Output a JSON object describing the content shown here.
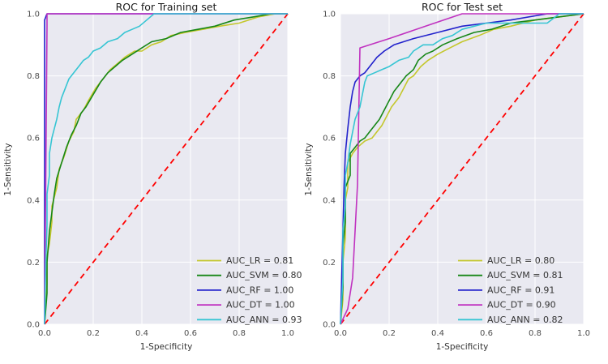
{
  "figure": {
    "background": "#ffffff"
  },
  "colors": {
    "plot_bg": "#e9e9f1",
    "grid": "#ffffff",
    "tick_label": "#4d4d4d",
    "title": "#1a1a1a",
    "legend_text": "#333333",
    "diagonal": "#ff0000",
    "lr": "#c4c72c",
    "svm": "#178717",
    "rf": "#2222cc",
    "dt": "#c032c0",
    "ann": "#36c5d3"
  },
  "chart_data": [
    {
      "type": "line",
      "title": "ROC for Training set",
      "xlabel": "1-Specificity",
      "ylabel": "1-Sensitivity",
      "xlim": [
        0.0,
        1.0
      ],
      "ylim": [
        0.0,
        1.0
      ],
      "xticks": [
        "0.0",
        "0.2",
        "0.4",
        "0.6",
        "0.8",
        "1.0"
      ],
      "yticks": [
        "0.0",
        "0.2",
        "0.4",
        "0.6",
        "0.8",
        "1.0"
      ],
      "grid": true,
      "legend_position": "lower right",
      "diagonal": {
        "style": "dashed",
        "color": "#ff0000",
        "points": [
          [
            0,
            0
          ],
          [
            1,
            1
          ]
        ]
      },
      "series": [
        {
          "name": "AUC_LR = 0.81",
          "model": "LR",
          "auc": 0.81,
          "color_key": "lr",
          "points": [
            [
              0,
              0
            ],
            [
              0.01,
              0.13
            ],
            [
              0.01,
              0.22
            ],
            [
              0.02,
              0.26
            ],
            [
              0.03,
              0.33
            ],
            [
              0.03,
              0.38
            ],
            [
              0.05,
              0.44
            ],
            [
              0.06,
              0.5
            ],
            [
              0.08,
              0.54
            ],
            [
              0.1,
              0.59
            ],
            [
              0.12,
              0.62
            ],
            [
              0.13,
              0.66
            ],
            [
              0.16,
              0.69
            ],
            [
              0.18,
              0.72
            ],
            [
              0.21,
              0.76
            ],
            [
              0.24,
              0.79
            ],
            [
              0.27,
              0.82
            ],
            [
              0.3,
              0.84
            ],
            [
              0.33,
              0.86
            ],
            [
              0.37,
              0.88
            ],
            [
              0.4,
              0.88
            ],
            [
              0.44,
              0.9
            ],
            [
              0.48,
              0.91
            ],
            [
              0.52,
              0.93
            ],
            [
              0.58,
              0.94
            ],
            [
              0.65,
              0.95
            ],
            [
              0.72,
              0.96
            ],
            [
              0.8,
              0.97
            ],
            [
              0.88,
              0.99
            ],
            [
              0.95,
              1
            ],
            [
              1,
              1
            ]
          ]
        },
        {
          "name": "AUC_SVM = 0.80",
          "model": "SVM",
          "auc": 0.8,
          "color_key": "svm",
          "points": [
            [
              0,
              0
            ],
            [
              0.01,
              0.1
            ],
            [
              0.01,
              0.2
            ],
            [
              0.02,
              0.3
            ],
            [
              0.03,
              0.36
            ],
            [
              0.04,
              0.42
            ],
            [
              0.05,
              0.47
            ],
            [
              0.07,
              0.52
            ],
            [
              0.09,
              0.57
            ],
            [
              0.11,
              0.61
            ],
            [
              0.13,
              0.64
            ],
            [
              0.15,
              0.68
            ],
            [
              0.17,
              0.7
            ],
            [
              0.2,
              0.74
            ],
            [
              0.23,
              0.78
            ],
            [
              0.26,
              0.81
            ],
            [
              0.29,
              0.83
            ],
            [
              0.32,
              0.85
            ],
            [
              0.36,
              0.87
            ],
            [
              0.4,
              0.89
            ],
            [
              0.44,
              0.91
            ],
            [
              0.5,
              0.92
            ],
            [
              0.56,
              0.94
            ],
            [
              0.63,
              0.95
            ],
            [
              0.7,
              0.96
            ],
            [
              0.78,
              0.98
            ],
            [
              0.86,
              0.99
            ],
            [
              0.93,
              1
            ],
            [
              1,
              1
            ]
          ]
        },
        {
          "name": "AUC_RF = 1.00",
          "model": "RF",
          "auc": 1.0,
          "color_key": "rf",
          "points": [
            [
              0,
              0
            ],
            [
              0,
              0.98
            ],
            [
              0.01,
              1
            ],
            [
              1,
              1
            ]
          ]
        },
        {
          "name": "AUC_DT = 1.00",
          "model": "DT",
          "auc": 1.0,
          "color_key": "dt",
          "points": [
            [
              0,
              0
            ],
            [
              0.01,
              0.96
            ],
            [
              0.01,
              1
            ],
            [
              1,
              1
            ]
          ]
        },
        {
          "name": "AUC_ANN = 0.93",
          "model": "ANN",
          "auc": 0.93,
          "color_key": "ann",
          "points": [
            [
              0,
              0
            ],
            [
              0.005,
              0.2
            ],
            [
              0.01,
              0.32
            ],
            [
              0.01,
              0.42
            ],
            [
              0.02,
              0.48
            ],
            [
              0.02,
              0.55
            ],
            [
              0.03,
              0.6
            ],
            [
              0.04,
              0.63
            ],
            [
              0.05,
              0.66
            ],
            [
              0.06,
              0.7
            ],
            [
              0.07,
              0.73
            ],
            [
              0.08,
              0.75
            ],
            [
              0.09,
              0.77
            ],
            [
              0.1,
              0.79
            ],
            [
              0.12,
              0.81
            ],
            [
              0.14,
              0.83
            ],
            [
              0.16,
              0.85
            ],
            [
              0.18,
              0.86
            ],
            [
              0.2,
              0.88
            ],
            [
              0.23,
              0.89
            ],
            [
              0.26,
              0.91
            ],
            [
              0.3,
              0.92
            ],
            [
              0.33,
              0.94
            ],
            [
              0.36,
              0.95
            ],
            [
              0.39,
              0.96
            ],
            [
              0.42,
              0.98
            ],
            [
              0.45,
              1
            ],
            [
              1,
              1
            ]
          ]
        }
      ]
    },
    {
      "type": "line",
      "title": "ROC for Test set",
      "xlabel": "1-Specificity",
      "ylabel": "1-Sensitivity",
      "xlim": [
        0.0,
        1.0
      ],
      "ylim": [
        0.0,
        1.0
      ],
      "xticks": [
        "0.0",
        "0.2",
        "0.4",
        "0.6",
        "0.8",
        "1.0"
      ],
      "yticks": [
        "0.0",
        "0.2",
        "0.4",
        "0.6",
        "0.8",
        "1.0"
      ],
      "grid": true,
      "legend_position": "lower right",
      "diagonal": {
        "style": "dashed",
        "color": "#ff0000",
        "points": [
          [
            0,
            0
          ],
          [
            1,
            1
          ]
        ]
      },
      "series": [
        {
          "name": "AUC_LR = 0.80",
          "model": "LR",
          "auc": 0.8,
          "color_key": "lr",
          "points": [
            [
              0,
              0
            ],
            [
              0.01,
              0.08
            ],
            [
              0.01,
              0.2
            ],
            [
              0.02,
              0.28
            ],
            [
              0.02,
              0.4
            ],
            [
              0.03,
              0.44
            ],
            [
              0.03,
              0.52
            ],
            [
              0.05,
              0.55
            ],
            [
              0.07,
              0.57
            ],
            [
              0.1,
              0.59
            ],
            [
              0.13,
              0.6
            ],
            [
              0.15,
              0.62
            ],
            [
              0.17,
              0.64
            ],
            [
              0.19,
              0.67
            ],
            [
              0.21,
              0.7
            ],
            [
              0.24,
              0.73
            ],
            [
              0.26,
              0.76
            ],
            [
              0.28,
              0.79
            ],
            [
              0.3,
              0.8
            ],
            [
              0.33,
              0.83
            ],
            [
              0.36,
              0.85
            ],
            [
              0.4,
              0.87
            ],
            [
              0.45,
              0.89
            ],
            [
              0.5,
              0.91
            ],
            [
              0.57,
              0.93
            ],
            [
              0.63,
              0.95
            ],
            [
              0.7,
              0.96
            ],
            [
              0.8,
              0.98
            ],
            [
              0.9,
              0.99
            ],
            [
              1,
              1
            ]
          ]
        },
        {
          "name": "AUC_SVM = 0.81",
          "model": "SVM",
          "auc": 0.81,
          "color_key": "svm",
          "points": [
            [
              0,
              0
            ],
            [
              0.01,
              0.12
            ],
            [
              0.01,
              0.25
            ],
            [
              0.02,
              0.33
            ],
            [
              0.02,
              0.44
            ],
            [
              0.04,
              0.48
            ],
            [
              0.04,
              0.55
            ],
            [
              0.06,
              0.57
            ],
            [
              0.08,
              0.59
            ],
            [
              0.1,
              0.6
            ],
            [
              0.12,
              0.62
            ],
            [
              0.14,
              0.64
            ],
            [
              0.16,
              0.66
            ],
            [
              0.18,
              0.69
            ],
            [
              0.2,
              0.72
            ],
            [
              0.22,
              0.75
            ],
            [
              0.25,
              0.78
            ],
            [
              0.27,
              0.8
            ],
            [
              0.3,
              0.82
            ],
            [
              0.32,
              0.85
            ],
            [
              0.35,
              0.87
            ],
            [
              0.38,
              0.88
            ],
            [
              0.42,
              0.9
            ],
            [
              0.48,
              0.92
            ],
            [
              0.55,
              0.94
            ],
            [
              0.62,
              0.95
            ],
            [
              0.7,
              0.97
            ],
            [
              0.8,
              0.98
            ],
            [
              0.9,
              0.99
            ],
            [
              1,
              1
            ]
          ]
        },
        {
          "name": "AUC_RF = 0.91",
          "model": "RF",
          "auc": 0.91,
          "color_key": "rf",
          "points": [
            [
              0,
              0
            ],
            [
              0.005,
              0.15
            ],
            [
              0.01,
              0.3
            ],
            [
              0.015,
              0.45
            ],
            [
              0.02,
              0.55
            ],
            [
              0.03,
              0.63
            ],
            [
              0.04,
              0.7
            ],
            [
              0.05,
              0.75
            ],
            [
              0.06,
              0.78
            ],
            [
              0.08,
              0.8
            ],
            [
              0.1,
              0.81
            ],
            [
              0.12,
              0.83
            ],
            [
              0.15,
              0.86
            ],
            [
              0.18,
              0.88
            ],
            [
              0.22,
              0.9
            ],
            [
              0.3,
              0.92
            ],
            [
              0.4,
              0.94
            ],
            [
              0.5,
              0.96
            ],
            [
              0.6,
              0.97
            ],
            [
              0.7,
              0.98
            ],
            [
              0.85,
              1
            ],
            [
              1,
              1
            ]
          ]
        },
        {
          "name": "AUC_DT = 0.90",
          "model": "DT",
          "auc": 0.9,
          "color_key": "dt",
          "points": [
            [
              0,
              0
            ],
            [
              0.03,
              0.05
            ],
            [
              0.05,
              0.15
            ],
            [
              0.07,
              0.45
            ],
            [
              0.08,
              0.89
            ],
            [
              0.2,
              0.92
            ],
            [
              0.35,
              0.96
            ],
            [
              0.5,
              1
            ],
            [
              1,
              1
            ]
          ]
        },
        {
          "name": "AUC_ANN = 0.82",
          "model": "ANN",
          "auc": 0.82,
          "color_key": "ann",
          "points": [
            [
              0,
              0
            ],
            [
              0.01,
              0.15
            ],
            [
              0.01,
              0.3
            ],
            [
              0.02,
              0.38
            ],
            [
              0.02,
              0.48
            ],
            [
              0.03,
              0.52
            ],
            [
              0.04,
              0.58
            ],
            [
              0.05,
              0.62
            ],
            [
              0.06,
              0.66
            ],
            [
              0.08,
              0.7
            ],
            [
              0.09,
              0.74
            ],
            [
              0.1,
              0.78
            ],
            [
              0.11,
              0.8
            ],
            [
              0.14,
              0.81
            ],
            [
              0.17,
              0.82
            ],
            [
              0.2,
              0.83
            ],
            [
              0.24,
              0.85
            ],
            [
              0.28,
              0.86
            ],
            [
              0.3,
              0.88
            ],
            [
              0.34,
              0.9
            ],
            [
              0.38,
              0.9
            ],
            [
              0.42,
              0.92
            ],
            [
              0.46,
              0.93
            ],
            [
              0.5,
              0.95
            ],
            [
              0.55,
              0.96
            ],
            [
              0.6,
              0.97
            ],
            [
              0.7,
              0.97
            ],
            [
              0.85,
              0.97
            ],
            [
              0.9,
              1
            ],
            [
              1,
              1
            ]
          ]
        }
      ]
    }
  ]
}
